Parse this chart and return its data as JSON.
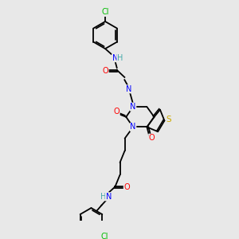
{
  "bg_color": "#e8e8e8",
  "atom_colors": {
    "C": "#000000",
    "N": "#0000FF",
    "O": "#FF0000",
    "S": "#CCAA00",
    "Cl": "#00BB00",
    "H": "#44AAAA"
  },
  "figsize": [
    3.0,
    3.0
  ],
  "dpi": 100,
  "lw": 1.3,
  "fs": 7.0
}
